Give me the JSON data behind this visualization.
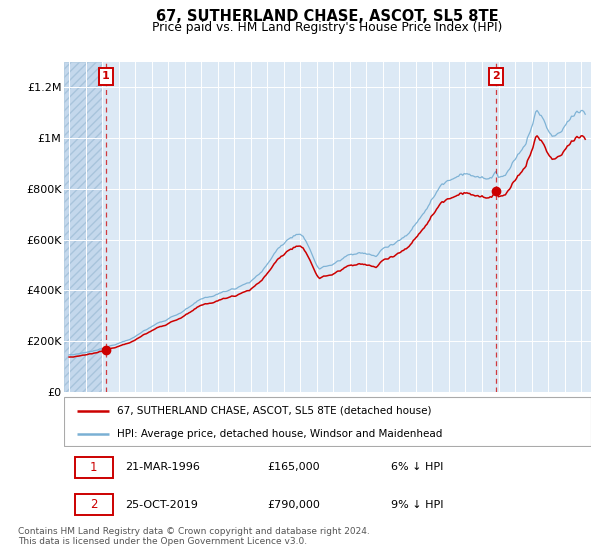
{
  "title": "67, SUTHERLAND CHASE, ASCOT, SL5 8TE",
  "subtitle": "Price paid vs. HM Land Registry's House Price Index (HPI)",
  "bg_color": "#dce9f5",
  "red_color": "#cc0000",
  "blue_color": "#7ab0d4",
  "sale1_date_num": 1996.22,
  "sale1_price": 165000,
  "sale2_date_num": 2019.82,
  "sale2_price": 790000,
  "legend_label_red": "67, SUTHERLAND CHASE, ASCOT, SL5 8TE (detached house)",
  "legend_label_blue": "HPI: Average price, detached house, Windsor and Maidenhead",
  "table_row1": [
    "1",
    "21-MAR-1996",
    "£165,000",
    "6% ↓ HPI"
  ],
  "table_row2": [
    "2",
    "25-OCT-2019",
    "£790,000",
    "9% ↓ HPI"
  ],
  "footer": "Contains HM Land Registry data © Crown copyright and database right 2024.\nThis data is licensed under the Open Government Licence v3.0.",
  "ylim": [
    0,
    1300000
  ],
  "xlim_start": 1993.7,
  "xlim_end": 2025.6,
  "hatch_end": 1996.0,
  "yticks": [
    0,
    200000,
    400000,
    600000,
    800000,
    1000000,
    1200000
  ],
  "ytick_labels": [
    "£0",
    "£200K",
    "£400K",
    "£600K",
    "£800K",
    "£1M",
    "£1.2M"
  ],
  "xticks": [
    1994,
    1995,
    1996,
    1997,
    1998,
    1999,
    2000,
    2001,
    2002,
    2003,
    2004,
    2005,
    2006,
    2007,
    2008,
    2009,
    2010,
    2011,
    2012,
    2013,
    2014,
    2015,
    2016,
    2017,
    2018,
    2019,
    2020,
    2021,
    2022,
    2023,
    2024,
    2025
  ]
}
